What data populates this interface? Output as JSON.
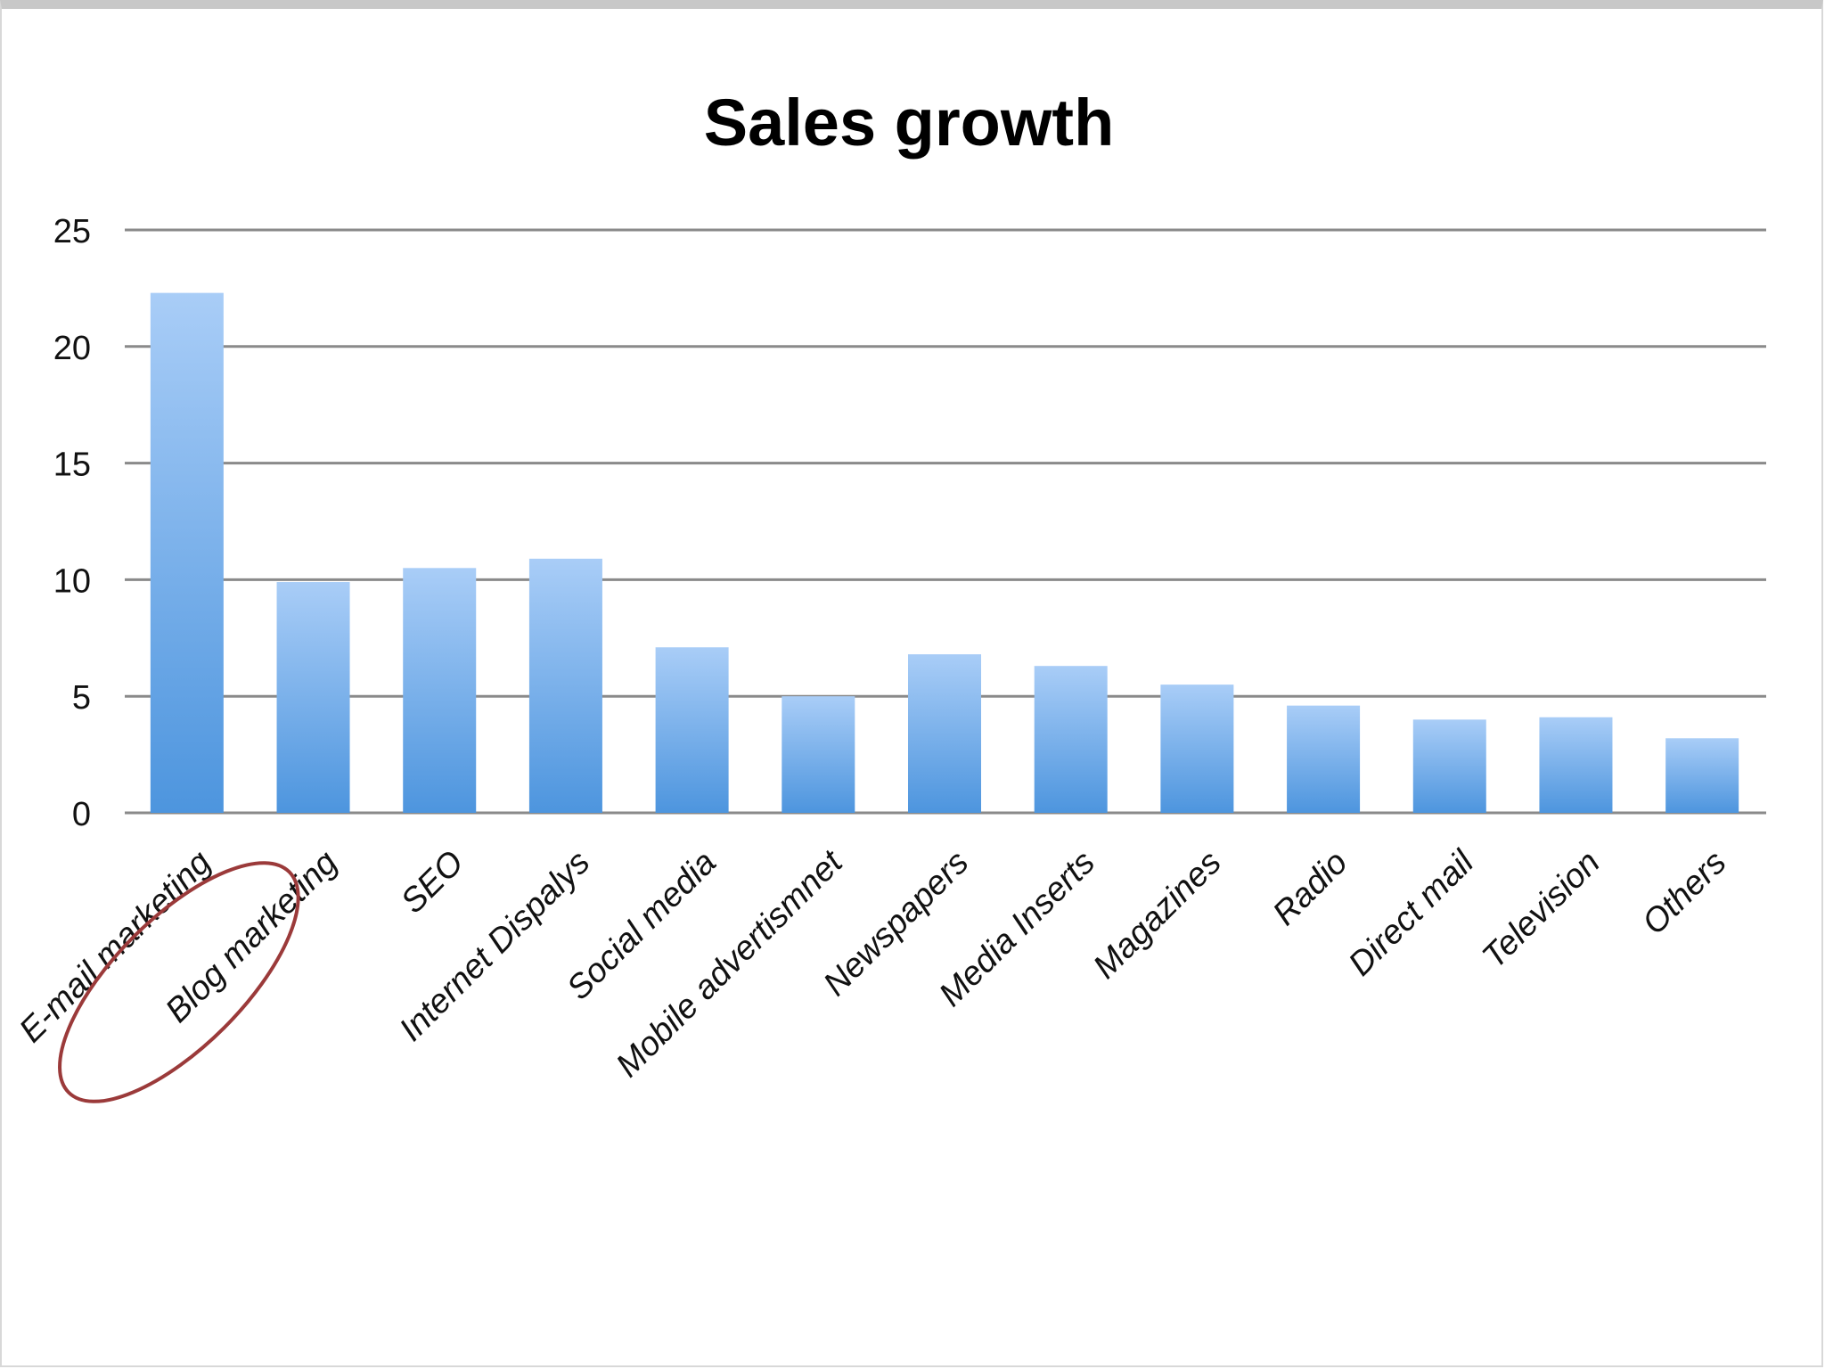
{
  "chart_data": {
    "type": "bar",
    "title": "Sales growth",
    "xlabel": "",
    "ylabel": "",
    "ylim": [
      0,
      25
    ],
    "yticks": [
      0,
      5,
      10,
      15,
      20,
      25
    ],
    "grid": true,
    "legend": "none",
    "categories": [
      "E-mail marketing",
      "Blog marketing",
      "SEO",
      "Internet Dispalys",
      "Social media",
      "Mobile advertismnet",
      "Newspapers",
      "Media Inserts",
      "Magazines",
      "Radio",
      "Direct mail",
      "Television",
      "Others"
    ],
    "values": [
      22.3,
      9.9,
      10.5,
      10.9,
      7.1,
      5.0,
      6.8,
      6.3,
      5.5,
      4.6,
      4.0,
      4.1,
      3.2
    ],
    "highlighted_category": "E-mail marketing",
    "colors": {
      "bar_top": "#a9cdf7",
      "bar_bottom": "#4d95de",
      "grid": "#8a8a8a",
      "axis": "#8a8a8a",
      "highlight_ellipse": "#9b3a3a"
    }
  }
}
